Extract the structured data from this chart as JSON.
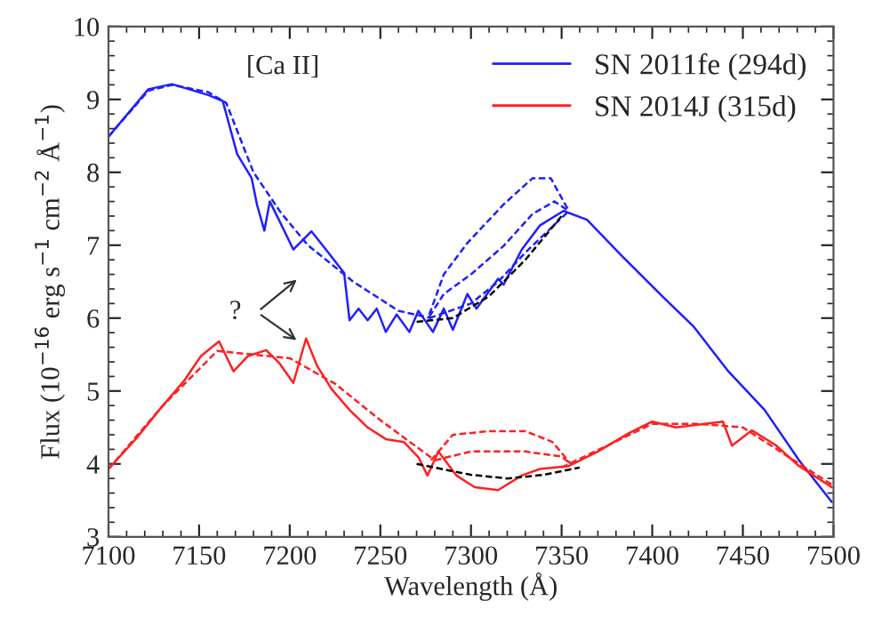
{
  "chart_data": {
    "type": "line",
    "xlabel": "Wavelength (Å)",
    "ylabel": "Flux (10$^{−16}$ erg s$^{−1}$ cm$^{−2}$ Å$^{−1}$)",
    "xlim": [
      7100,
      7500
    ],
    "ylim": [
      3,
      10
    ],
    "xticks": [
      7100,
      7150,
      7200,
      7250,
      7300,
      7350,
      7400,
      7450,
      7500
    ],
    "yticks": [
      3,
      4,
      5,
      6,
      7,
      8,
      9,
      10
    ],
    "grid": false,
    "legend": "top right",
    "annotations": [
      "[Ca II]",
      "?"
    ],
    "series": [
      {
        "name": "SN 2011fe (294d)",
        "color": "#1f1fff",
        "line_style": "solid",
        "x": [
          7100,
          7122,
          7135,
          7155,
          7163,
          7171,
          7179,
          7182,
          7186,
          7189,
          7194,
          7202,
          7212,
          7220,
          7230,
          7233,
          7238,
          7243,
          7248,
          7253,
          7259,
          7266,
          7271,
          7279,
          7285,
          7290,
          7298,
          7303,
          7315,
          7318,
          7328,
          7338,
          7351,
          7364,
          7383,
          7406,
          7423,
          7442,
          7462,
          7481,
          7499
        ],
        "values": [
          8.49,
          9.14,
          9.21,
          9.06,
          8.98,
          8.25,
          7.92,
          7.55,
          7.2,
          7.6,
          7.35,
          6.94,
          7.19,
          6.94,
          6.62,
          5.97,
          6.13,
          5.97,
          6.13,
          5.81,
          6.05,
          5.81,
          6.1,
          5.81,
          6.13,
          5.84,
          6.33,
          6.13,
          6.54,
          6.46,
          6.94,
          7.27,
          7.47,
          7.35,
          6.86,
          6.29,
          5.88,
          5.27,
          4.74,
          4.05,
          3.48
        ]
      },
      {
        "color": "#1f1fff",
        "line_style": "dashed",
        "x": [
          7100,
          7122,
          7135,
          7155,
          7165,
          7180,
          7195,
          7210,
          7235,
          7260,
          7278
        ],
        "values": [
          8.49,
          9.12,
          9.2,
          9.1,
          8.95,
          8.0,
          7.45,
          7.0,
          6.5,
          6.1,
          6.0
        ]
      },
      {
        "color": "#1f1fff",
        "line_style": "dashed",
        "x": [
          7277,
          7285,
          7298,
          7318,
          7334,
          7344,
          7354
        ],
        "values": [
          6.05,
          6.6,
          7.03,
          7.56,
          7.92,
          7.92,
          7.47
        ]
      },
      {
        "color": "#1f1fff",
        "line_style": "dashed",
        "x": [
          7277,
          7285,
          7300,
          7318,
          7334,
          7346,
          7354
        ],
        "values": [
          6.02,
          6.33,
          6.6,
          6.99,
          7.43,
          7.6,
          7.47
        ]
      },
      {
        "color": "#1f1fff",
        "line_style": "dashed",
        "x": [
          7277,
          7300,
          7315,
          7330,
          7354
        ],
        "values": [
          6.0,
          6.2,
          6.5,
          6.9,
          7.47
        ]
      },
      {
        "color": "#000000",
        "line_style": "dashed",
        "x": [
          7270,
          7290,
          7310,
          7330,
          7350
        ],
        "values": [
          5.95,
          6.0,
          6.3,
          6.8,
          7.4
        ]
      },
      {
        "name": "SN 2014J (315d)",
        "color": "#ff2020",
        "line_style": "solid",
        "x": [
          7100,
          7115,
          7128,
          7142,
          7151,
          7161,
          7169,
          7177,
          7187,
          7194,
          7202,
          7209,
          7215,
          7223,
          7233,
          7243,
          7253,
          7263,
          7271,
          7276,
          7282,
          7292,
          7302,
          7315,
          7328,
          7338,
          7354,
          7370,
          7387,
          7400,
          7413,
          7426,
          7439,
          7444,
          7455,
          7468,
          7481,
          7499
        ],
        "values": [
          3.93,
          4.34,
          4.74,
          5.15,
          5.48,
          5.68,
          5.27,
          5.48,
          5.56,
          5.39,
          5.11,
          5.72,
          5.35,
          5.03,
          4.74,
          4.5,
          4.34,
          4.3,
          4.09,
          3.84,
          4.17,
          3.84,
          3.68,
          3.64,
          3.84,
          3.93,
          3.97,
          4.17,
          4.42,
          4.58,
          4.5,
          4.54,
          4.58,
          4.25,
          4.46,
          4.26,
          3.97,
          3.68
        ]
      },
      {
        "color": "#ff2020",
        "line_style": "dashed",
        "x": [
          7100,
          7130,
          7160,
          7200,
          7225,
          7250,
          7280
        ],
        "values": [
          3.93,
          4.8,
          5.55,
          5.45,
          5.1,
          4.6,
          4.05
        ]
      },
      {
        "color": "#ff2020",
        "line_style": "dashed",
        "x": [
          7350,
          7375,
          7400,
          7425,
          7450,
          7475,
          7500
        ],
        "values": [
          3.95,
          4.25,
          4.55,
          4.55,
          4.5,
          4.1,
          3.7
        ]
      },
      {
        "color": "#ff2020",
        "line_style": "dashed",
        "x": [
          7278,
          7290,
          7310,
          7330,
          7345,
          7355
        ],
        "values": [
          4.05,
          4.4,
          4.45,
          4.45,
          4.3,
          4.0
        ]
      },
      {
        "color": "#ff2020",
        "line_style": "dashed",
        "x": [
          7280,
          7300,
          7330,
          7350,
          7355
        ],
        "values": [
          4.05,
          4.17,
          4.17,
          4.1,
          4.0
        ]
      },
      {
        "color": "#000000",
        "line_style": "dashed",
        "x": [
          7270,
          7300,
          7320,
          7340,
          7360
        ],
        "values": [
          4.0,
          3.85,
          3.8,
          3.85,
          3.95
        ]
      }
    ]
  }
}
